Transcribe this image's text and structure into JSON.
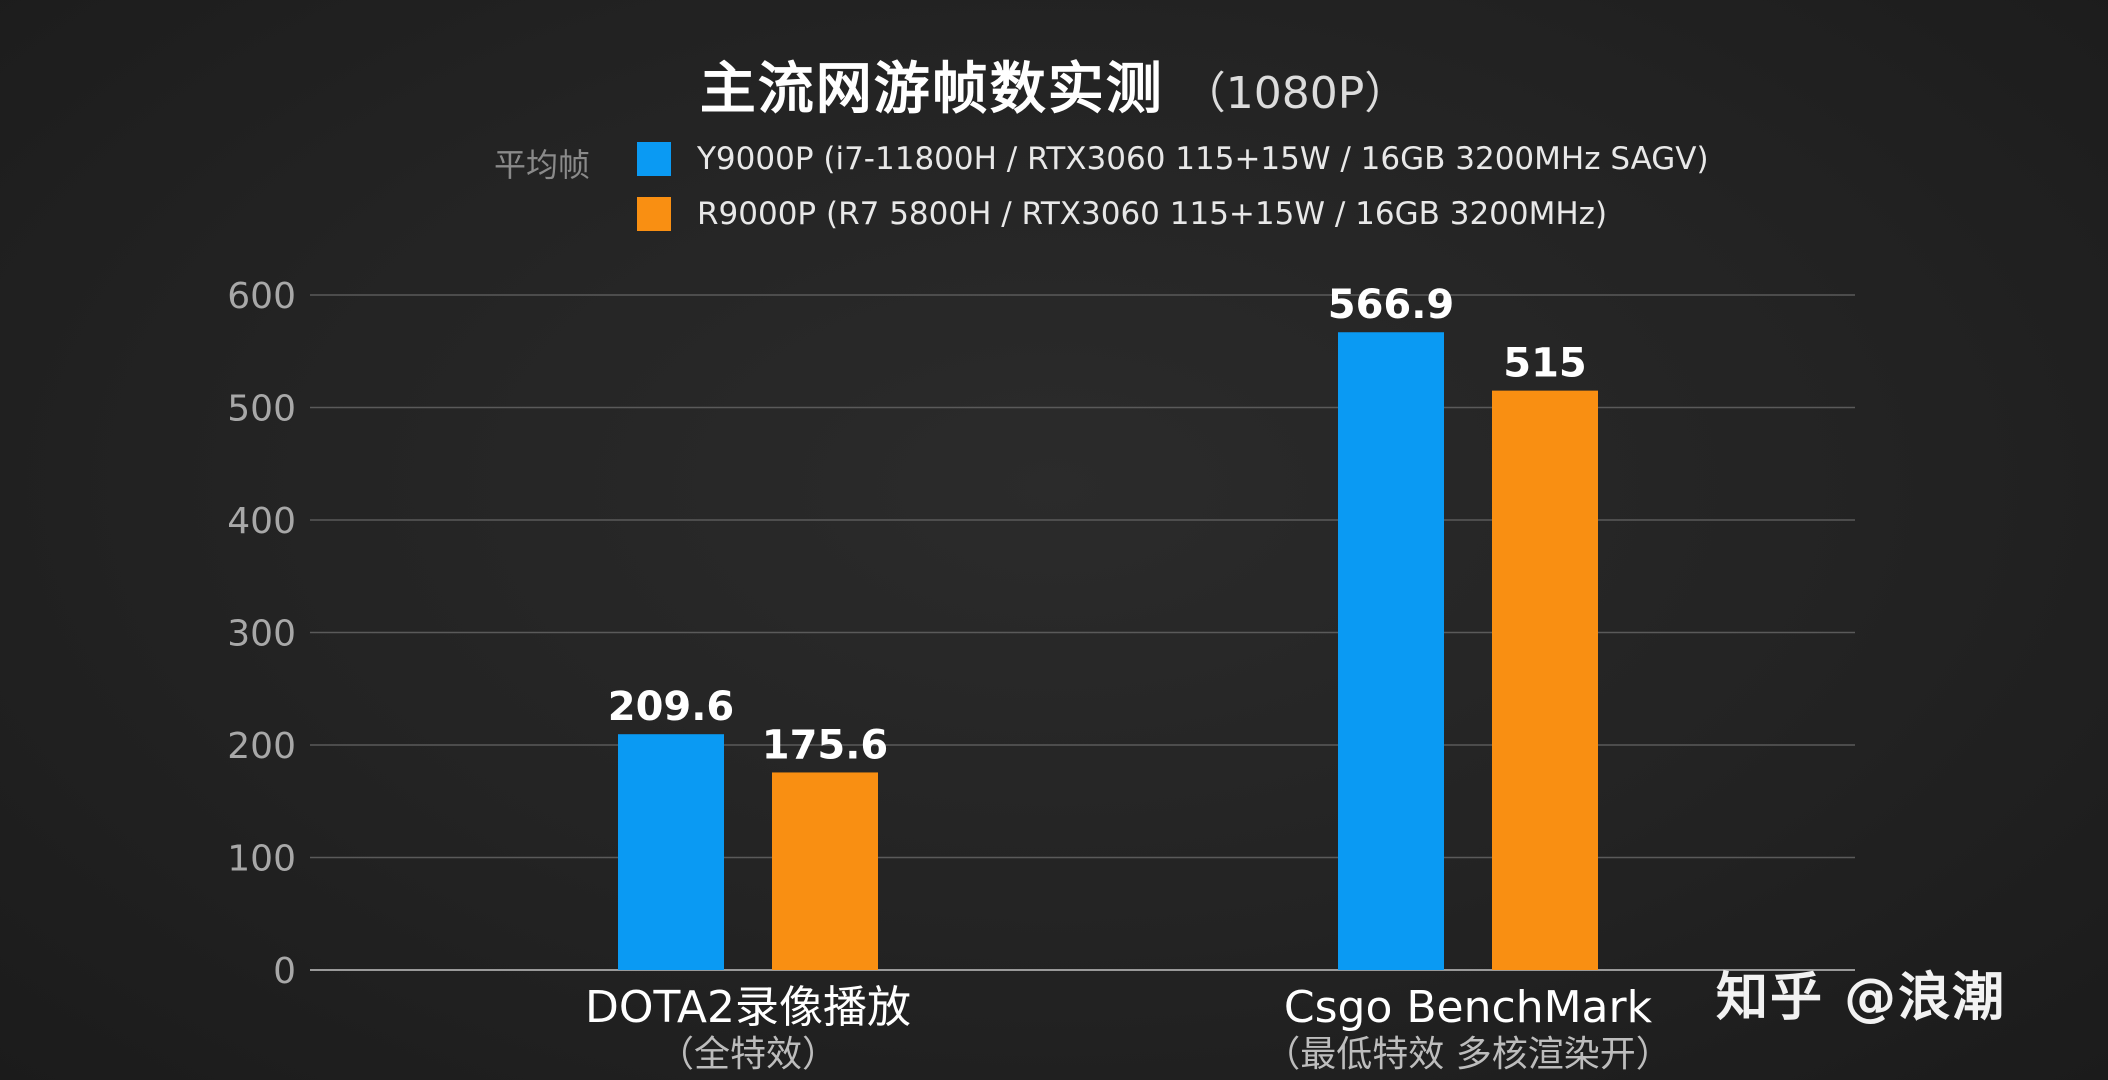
{
  "chart_data": {
    "type": "bar",
    "title": "主流网游帧数实测",
    "subtitle": "（1080P）",
    "legend_title": "平均帧",
    "categories": [
      {
        "label": "DOTA2录像播放",
        "sublabel": "（全特效）"
      },
      {
        "label": "Csgo BenchMark",
        "sublabel": "（最低特效 多核渲染开）"
      }
    ],
    "series": [
      {
        "name": "Y9000P (i7-11800H / RTX3060 115+15W / 16GB 3200MHz SAGV)",
        "color": "#0a9af3",
        "values": [
          209.6,
          566.9
        ],
        "labels": [
          "209.6",
          "566.9"
        ]
      },
      {
        "name": "R9000P (R7 5800H / RTX3060 115+15W / 16GB 3200MHz)",
        "color": "#f98f12",
        "values": [
          175.6,
          515
        ],
        "labels": [
          "175.6",
          "515"
        ]
      }
    ],
    "yticks": [
      0,
      100,
      200,
      300,
      400,
      500,
      600
    ],
    "ylim": [
      0,
      600
    ],
    "grid": true,
    "legend_position": "top-left"
  },
  "watermark": "知乎 @浪潮"
}
